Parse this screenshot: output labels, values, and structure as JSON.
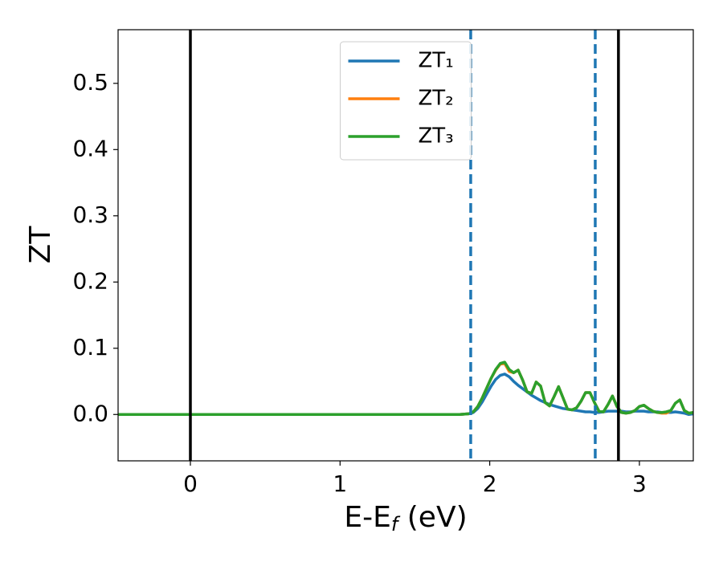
{
  "chart_data": {
    "type": "line",
    "ylabel": "ZT",
    "xlabel": [
      "E-E",
      "f",
      " (eV)"
    ],
    "x": [
      -0.48,
      1.8,
      1.86,
      1.89,
      1.92,
      1.95,
      1.98,
      2.01,
      2.04,
      2.07,
      2.1,
      2.13,
      2.16,
      2.19,
      2.22,
      2.25,
      2.28,
      2.31,
      2.34,
      2.37,
      2.4,
      2.43,
      2.46,
      2.49,
      2.52,
      2.55,
      2.58,
      2.61,
      2.64,
      2.67,
      2.7,
      2.73,
      2.76,
      2.79,
      2.82,
      2.85,
      2.88,
      2.91,
      2.94,
      2.97,
      3.0,
      3.03,
      3.06,
      3.09,
      3.12,
      3.15,
      3.18,
      3.21,
      3.24,
      3.27,
      3.3,
      3.33,
      3.36
    ],
    "series": [
      {
        "name": "ZT₁",
        "color": "#1f77b4",
        "values": [
          0,
          0,
          0.001,
          0.003,
          0.009,
          0.019,
          0.031,
          0.043,
          0.053,
          0.059,
          0.061,
          0.057,
          0.05,
          0.044,
          0.039,
          0.034,
          0.029,
          0.025,
          0.021,
          0.018,
          0.015,
          0.013,
          0.011,
          0.009,
          0.008,
          0.007,
          0.006,
          0.005,
          0.004,
          0.004,
          0.003,
          0.003,
          0.004,
          0.005,
          0.005,
          0.005,
          0.005,
          0.004,
          0.004,
          0.005,
          0.005,
          0.005,
          0.004,
          0.004,
          0.004,
          0.003,
          0.003,
          0.003,
          0.004,
          0.003,
          0.002,
          0,
          0.001
        ]
      },
      {
        "name": "ZT₂",
        "color": "#ff7f0e",
        "values": [
          0,
          0,
          0.001,
          0.004,
          0.012,
          0.025,
          0.04,
          0.055,
          0.067,
          0.076,
          0.077,
          0.065,
          0.063,
          0.067,
          0.052,
          0.034,
          0.032,
          0.049,
          0.043,
          0.018,
          0.013,
          0.027,
          0.042,
          0.025,
          0.008,
          0.007,
          0.01,
          0.02,
          0.033,
          0.033,
          0.018,
          0.005,
          0.004,
          0.015,
          0.028,
          0.012,
          0.003,
          0.002,
          0.003,
          0.006,
          0.012,
          0.014,
          0.009,
          0.005,
          0.003,
          0.002,
          0.002,
          0.006,
          0.017,
          0.022,
          0.006,
          0.002,
          0.003
        ]
      },
      {
        "name": "ZT₃",
        "color": "#2ca02c",
        "values": [
          0,
          0,
          0.001,
          0.004,
          0.012,
          0.025,
          0.04,
          0.055,
          0.068,
          0.077,
          0.079,
          0.068,
          0.063,
          0.067,
          0.052,
          0.034,
          0.032,
          0.049,
          0.043,
          0.018,
          0.013,
          0.027,
          0.042,
          0.025,
          0.008,
          0.007,
          0.01,
          0.02,
          0.033,
          0.033,
          0.018,
          0.005,
          0.004,
          0.015,
          0.028,
          0.012,
          0.003,
          0.002,
          0.003,
          0.006,
          0.012,
          0.014,
          0.009,
          0.005,
          0.003,
          0.003,
          0.004,
          0.006,
          0.017,
          0.022,
          0.006,
          0.002,
          0.003
        ]
      }
    ],
    "vlines": [
      {
        "x": 0,
        "color": "#000000",
        "style": "solid"
      },
      {
        "x": 2.86,
        "color": "#000000",
        "style": "solid"
      },
      {
        "x": 1.873,
        "color": "#1f77b4",
        "style": "dashed"
      },
      {
        "x": 2.705,
        "color": "#1f77b4",
        "style": "dashed"
      }
    ],
    "xlim": [
      -0.483,
      3.36
    ],
    "ylim": [
      -0.07,
      0.581
    ],
    "xticks": [
      0,
      1,
      2,
      3
    ],
    "yticks": [
      {
        "value": 0,
        "label": "0.0"
      },
      0.1,
      0.2,
      0.3,
      0.4,
      0.5
    ],
    "grid": false,
    "legend": "upper center"
  }
}
